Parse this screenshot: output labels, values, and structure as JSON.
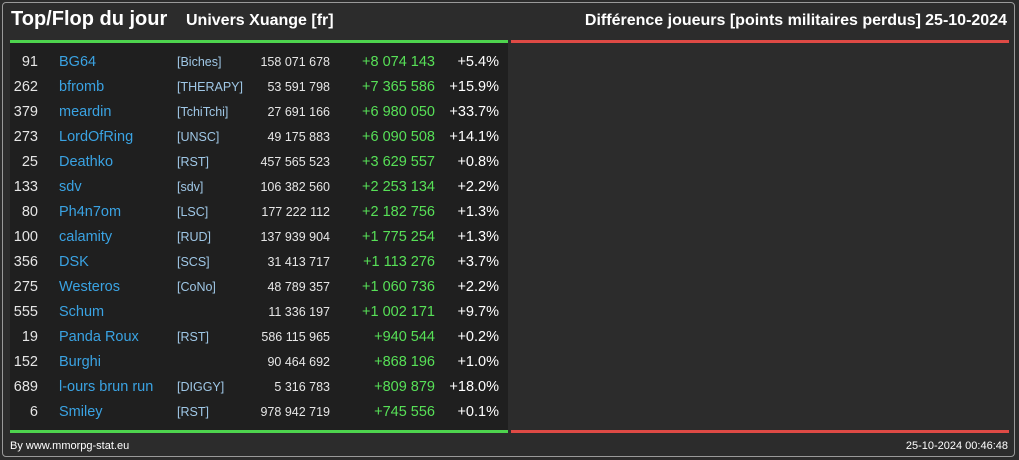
{
  "header": {
    "title": "Top/Flop du jour",
    "subtitle": "Univers Xuange [fr]",
    "category": "Différence joueurs [points militaires perdus]",
    "date": "25-10-2024"
  },
  "colors": {
    "background": "#2c2c2c",
    "panel_background": "#1f1f1f",
    "top_accent": "#4ed44e",
    "flop_accent": "#de4a45",
    "player_link": "#3aa3e3",
    "positive_diff": "#57e057"
  },
  "top": [
    {
      "rank": "91",
      "player": "BG64",
      "alliance": "[Biches]",
      "points": "158 071 678",
      "diff": "+8 074 143",
      "pct": "+5.4%"
    },
    {
      "rank": "262",
      "player": "bfromb",
      "alliance": "[THERAPY]",
      "points": "53 591 798",
      "diff": "+7 365 586",
      "pct": "+15.9%"
    },
    {
      "rank": "379",
      "player": "meardin",
      "alliance": "[TchiTchi]",
      "points": "27 691 166",
      "diff": "+6 980 050",
      "pct": "+33.7%"
    },
    {
      "rank": "273",
      "player": "LordOfRing",
      "alliance": "[UNSC]",
      "points": "49 175 883",
      "diff": "+6 090 508",
      "pct": "+14.1%"
    },
    {
      "rank": "25",
      "player": "Deathko",
      "alliance": "[RST]",
      "points": "457 565 523",
      "diff": "+3 629 557",
      "pct": "+0.8%"
    },
    {
      "rank": "133",
      "player": "sdv",
      "alliance": "[sdv]",
      "points": "106 382 560",
      "diff": "+2 253 134",
      "pct": "+2.2%"
    },
    {
      "rank": "80",
      "player": "Ph4n7om",
      "alliance": "[LSC]",
      "points": "177 222 112",
      "diff": "+2 182 756",
      "pct": "+1.3%"
    },
    {
      "rank": "100",
      "player": "calamity",
      "alliance": "[RUD]",
      "points": "137 939 904",
      "diff": "+1 775 254",
      "pct": "+1.3%"
    },
    {
      "rank": "356",
      "player": "DSK",
      "alliance": "[SCS]",
      "points": "31 413 717",
      "diff": "+1 113 276",
      "pct": "+3.7%"
    },
    {
      "rank": "275",
      "player": "Westeros",
      "alliance": "[CoNo]",
      "points": "48 789 357",
      "diff": "+1 060 736",
      "pct": "+2.2%"
    },
    {
      "rank": "555",
      "player": "Schum",
      "alliance": "",
      "points": "11 336 197",
      "diff": "+1 002 171",
      "pct": "+9.7%"
    },
    {
      "rank": "19",
      "player": "Panda Roux",
      "alliance": "[RST]",
      "points": "586 115 965",
      "diff": "+940 544",
      "pct": "+0.2%"
    },
    {
      "rank": "152",
      "player": "Burghi",
      "alliance": "",
      "points": "90 464 692",
      "diff": "+868 196",
      "pct": "+1.0%"
    },
    {
      "rank": "689",
      "player": "l-ours brun run",
      "alliance": "[DIGGY]",
      "points": "5 316 783",
      "diff": "+809 879",
      "pct": "+18.0%"
    },
    {
      "rank": "6",
      "player": "Smiley",
      "alliance": "[RST]",
      "points": "978 942 719",
      "diff": "+745 556",
      "pct": "+0.1%"
    }
  ],
  "footer": {
    "credit": "By www.mmorpg-stat.eu",
    "timestamp": "25-10-2024 00:46:48"
  }
}
